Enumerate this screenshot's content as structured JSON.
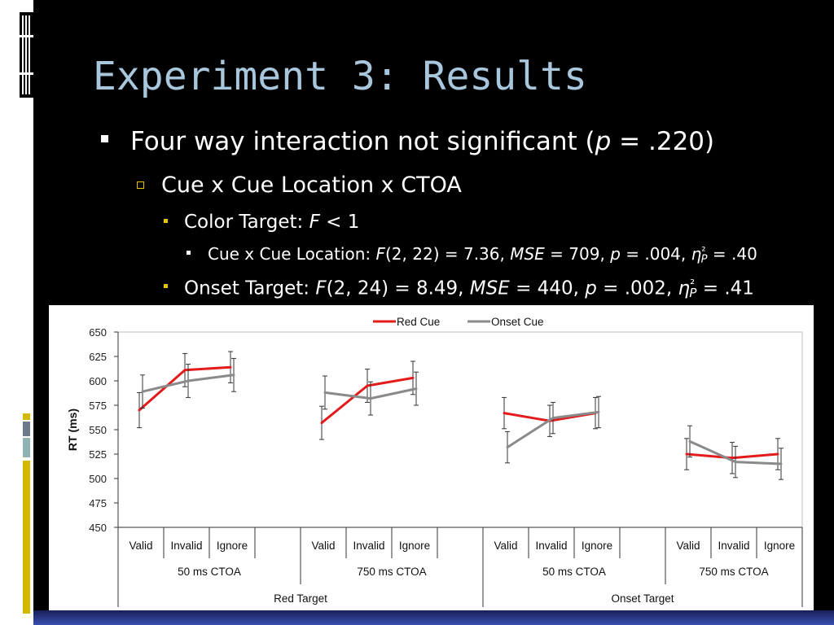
{
  "slide": {
    "title": "Experiment 3: Results",
    "bullets": [
      {
        "level": 1,
        "parts": [
          {
            "t": "Four way interaction not significant (",
            "i": false
          },
          {
            "t": "p",
            "i": true
          },
          {
            "t": " = .220)",
            "i": false
          }
        ]
      },
      {
        "level": 2,
        "parts": [
          {
            "t": "Cue x Cue Location x CTOA",
            "i": false
          }
        ]
      },
      {
        "level": 3,
        "parts": [
          {
            "t": "Color Target: ",
            "i": false
          },
          {
            "t": "F",
            "i": true
          },
          {
            "t": " < 1",
            "i": false
          }
        ]
      },
      {
        "level": 4,
        "parts": [
          {
            "t": "Cue x Cue Location: ",
            "i": false
          },
          {
            "t": "F",
            "i": true
          },
          {
            "t": "(2, 22) = 7.36, ",
            "i": false
          },
          {
            "t": "MSE",
            "i": true
          },
          {
            "t": " = 709, ",
            "i": false
          },
          {
            "t": "p",
            "i": true
          },
          {
            "t": " = .004, ",
            "i": false
          },
          {
            "t": "η",
            "i": true
          },
          {
            "t": "²",
            "i": false
          },
          {
            "t": "P",
            "i": true,
            "sub": true
          },
          {
            "t": " = .40",
            "i": false
          }
        ]
      },
      {
        "level": 3,
        "parts": [
          {
            "t": "Onset Target: ",
            "i": false
          },
          {
            "t": "F",
            "i": true
          },
          {
            "t": "(2, 24) = 8.49, ",
            "i": false
          },
          {
            "t": "MSE",
            "i": true
          },
          {
            "t": " = 440, ",
            "i": false
          },
          {
            "t": "p",
            "i": true
          },
          {
            "t": " = .002, ",
            "i": false
          },
          {
            "t": "η",
            "i": true
          },
          {
            "t": "²",
            "i": false
          },
          {
            "t": "P",
            "i": true,
            "sub": true
          },
          {
            "t": " = .41",
            "i": false
          }
        ]
      }
    ]
  },
  "colors": {
    "title": "#a8c7dc",
    "accent": "#e8c400",
    "red_cue": "#e31b1b",
    "onset_cue": "#8a8a8a"
  },
  "chart_data": {
    "type": "line",
    "ylabel": "RT (ms)",
    "xlabel": "",
    "ylim": [
      450,
      650
    ],
    "yticks": [
      450,
      475,
      500,
      525,
      550,
      575,
      600,
      625,
      650
    ],
    "legend": {
      "placement": "top-center"
    },
    "categories": [
      "Valid",
      "Invalid",
      "Ignore",
      "",
      "Valid",
      "Invalid",
      "Ignore",
      "",
      "Valid",
      "Invalid",
      "Ignore",
      "",
      "Valid",
      "Invalid",
      "Ignore"
    ],
    "ctoa_labels": [
      {
        "label": "50 ms CTOA",
        "span": [
          0,
          3
        ]
      },
      {
        "label": "750 ms CTOA",
        "span": [
          4,
          7
        ]
      },
      {
        "label": "50 ms CTOA",
        "span": [
          8,
          11
        ]
      },
      {
        "label": "750 ms CTOA",
        "span": [
          12,
          14
        ]
      }
    ],
    "target_labels": [
      {
        "label": "Red Target",
        "span": [
          0,
          7
        ]
      },
      {
        "label": "Onset Target",
        "span": [
          8,
          14
        ]
      }
    ],
    "series": [
      {
        "name": "Red Cue",
        "groups": [
          {
            "start": 0,
            "values": [
              570,
              611,
              614
            ],
            "errors": [
              18,
              17,
              16
            ]
          },
          {
            "start": 4,
            "values": [
              557,
              595,
              603
            ],
            "errors": [
              17,
              17,
              17
            ]
          },
          {
            "start": 8,
            "values": [
              567,
              559,
              567
            ],
            "errors": [
              16,
              16,
              16
            ]
          },
          {
            "start": 12,
            "values": [
              525,
              521,
              525
            ],
            "errors": [
              16,
              16,
              16
            ]
          }
        ]
      },
      {
        "name": "Onset Cue",
        "groups": [
          {
            "start": 0,
            "values": [
              589,
              600,
              606
            ],
            "errors": [
              17,
              17,
              17
            ]
          },
          {
            "start": 4,
            "values": [
              588,
              582,
              592
            ],
            "errors": [
              17,
              17,
              17
            ]
          },
          {
            "start": 8,
            "values": [
              532,
              562,
              568
            ],
            "errors": [
              16,
              16,
              16
            ]
          },
          {
            "start": 12,
            "values": [
              538,
              517,
              515
            ],
            "errors": [
              16,
              16,
              16
            ]
          }
        ]
      }
    ]
  }
}
